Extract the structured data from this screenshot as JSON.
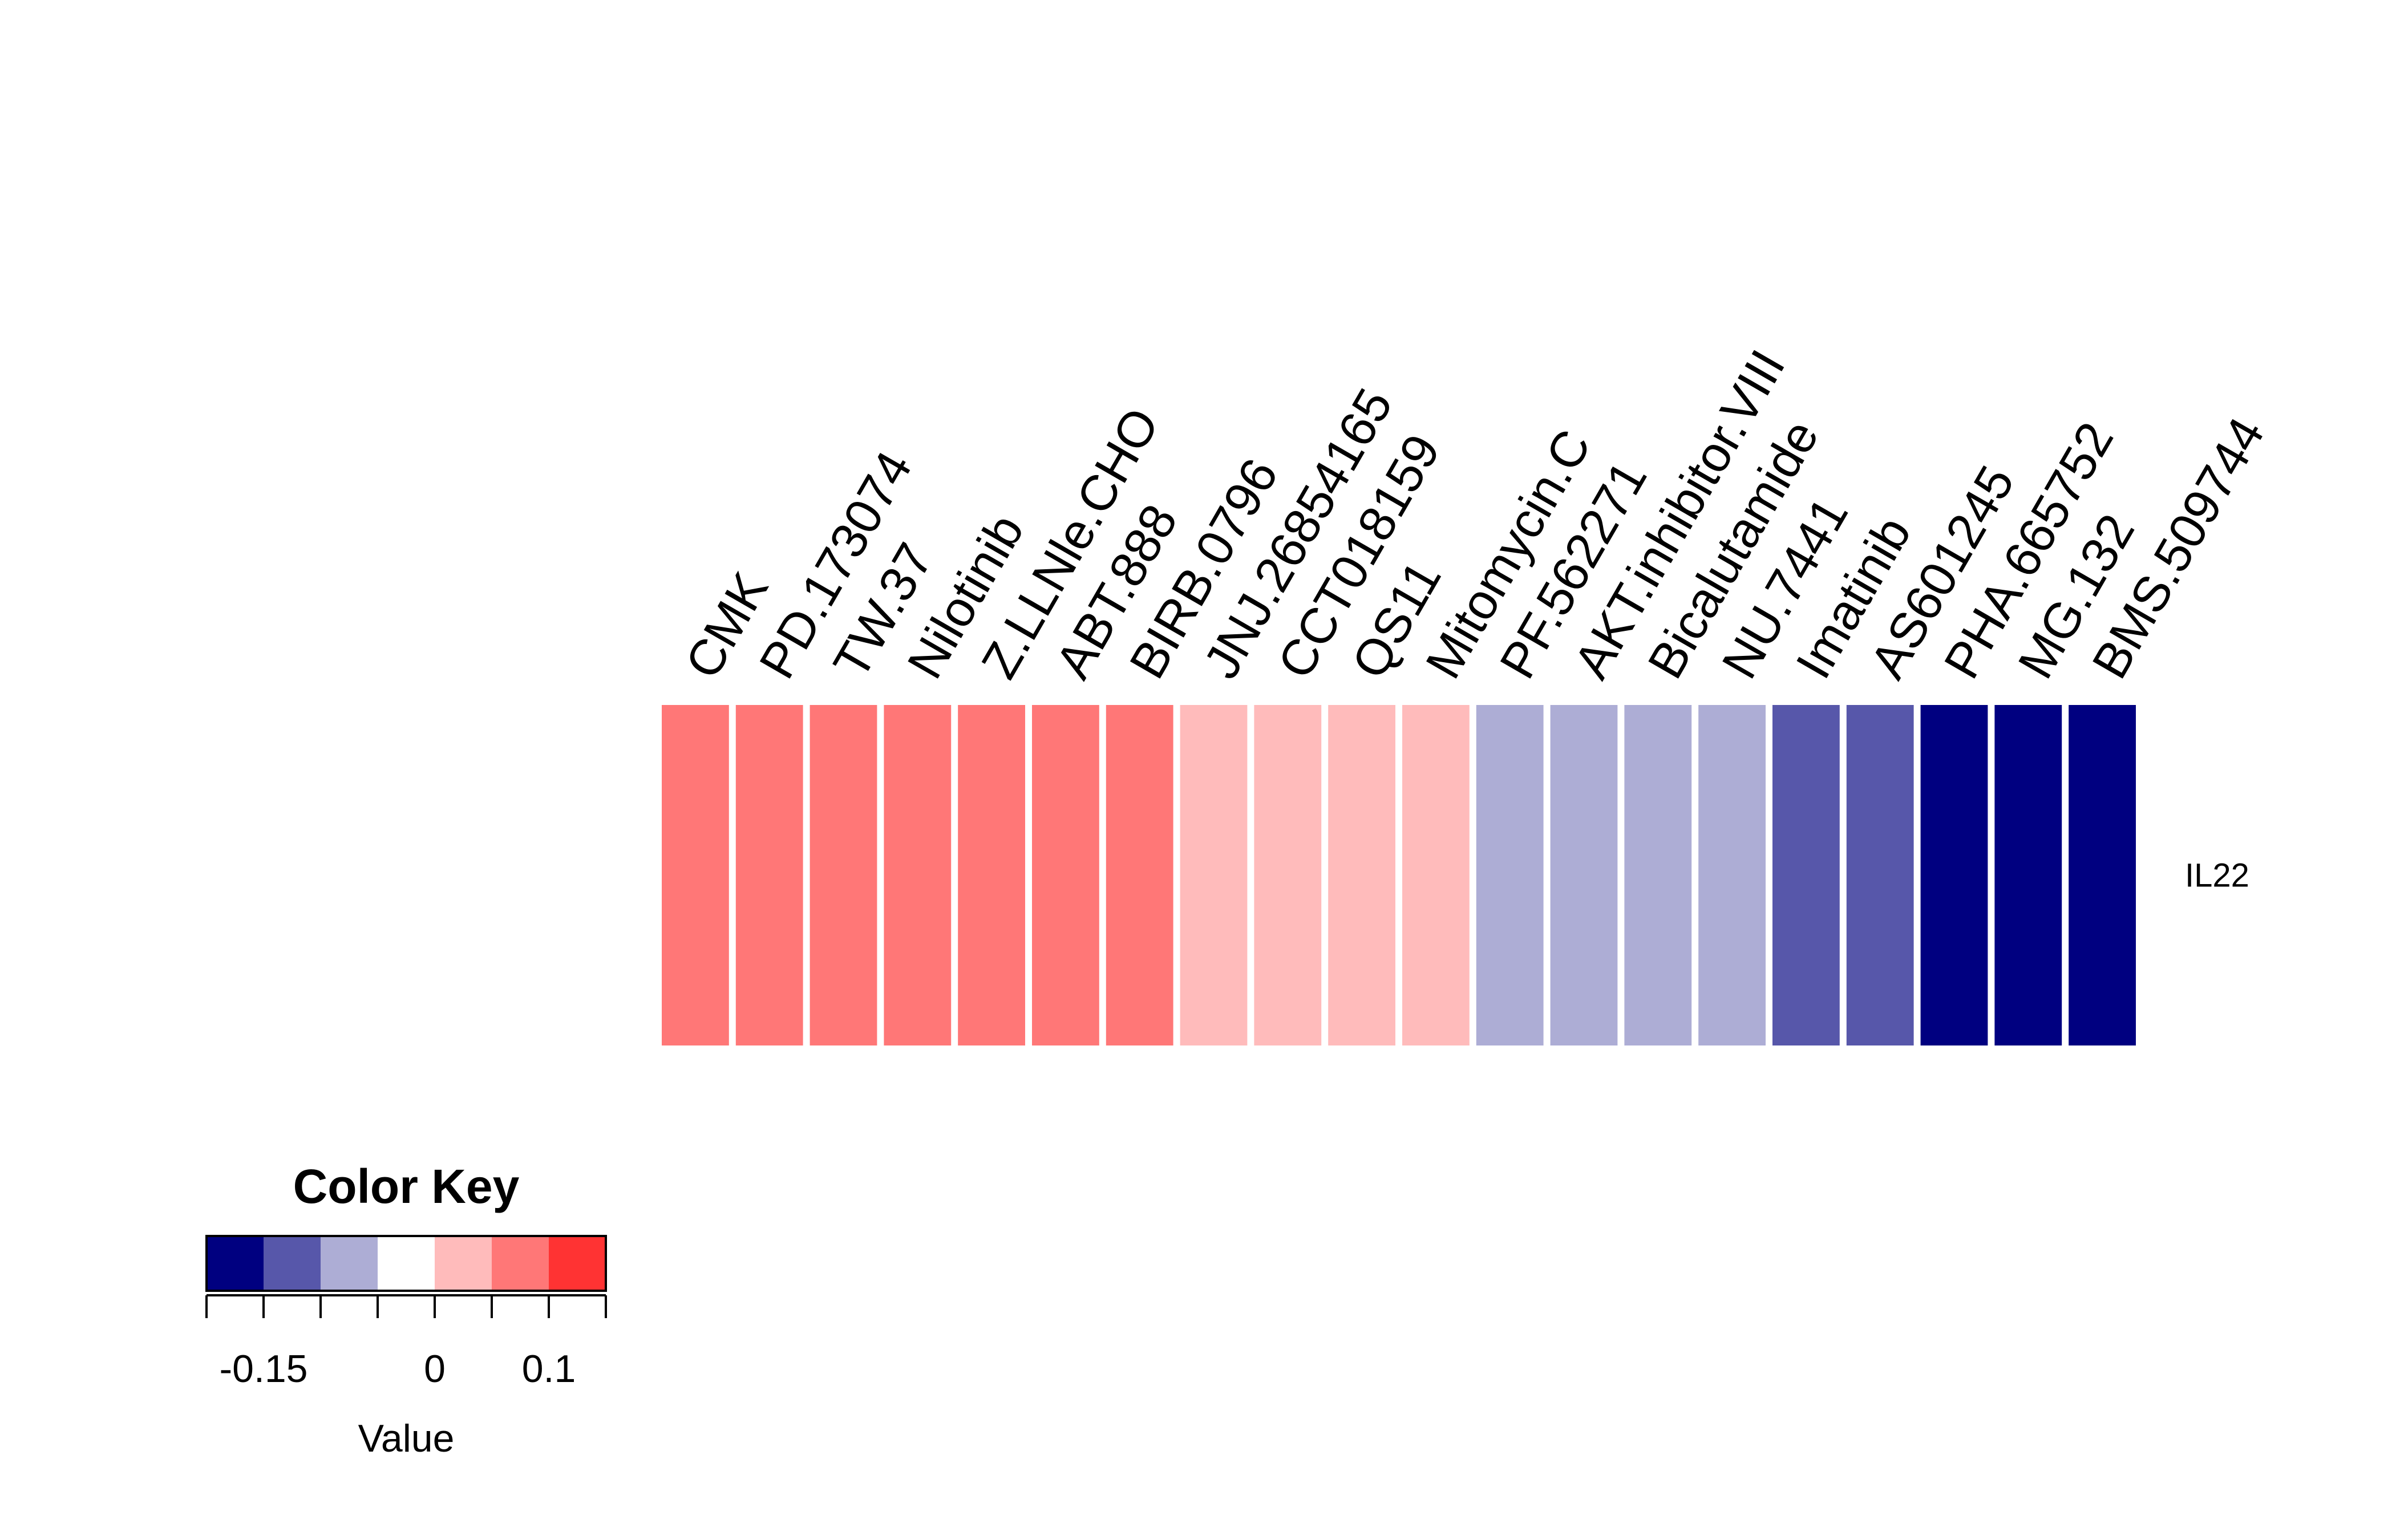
{
  "chart_data": {
    "type": "heatmap",
    "rows": [
      "IL22"
    ],
    "columns": [
      "CMK",
      "PD.173074",
      "TW.37",
      "Nilotinib",
      "Z.LLNle.CHO",
      "ABT.888",
      "BIRB.0796",
      "JNJ.26854165",
      "CCT018159",
      "QS11",
      "Mitomycin.C",
      "PF.562271",
      "AKT.inhibitor.VIII",
      "Bicalutamide",
      "NU.7441",
      "Imatinib",
      "AS601245",
      "PHA.665752",
      "MG.132",
      "BMS.509744"
    ],
    "values": [
      [
        0.075,
        0.075,
        0.075,
        0.075,
        0.075,
        0.075,
        0.075,
        0.025,
        0.025,
        0.025,
        0.025,
        -0.075,
        -0.075,
        -0.075,
        -0.075,
        -0.125,
        -0.125,
        -0.175,
        -0.175,
        -0.175
      ]
    ],
    "color_key": {
      "title": "Color Key",
      "xlabel": "Value",
      "breaks": [
        -0.2,
        -0.15,
        -0.1,
        -0.05,
        0,
        0.05,
        0.1,
        0.15
      ],
      "colors": [
        "#000080",
        "#5757AA",
        "#ADADD5",
        "#FFFFFF",
        "#FFBBBB",
        "#FF7777",
        "#FF3333"
      ],
      "tick_values": [
        -0.2,
        -0.15,
        -0.1,
        -0.05,
        0,
        0.05,
        0.1,
        0.15
      ],
      "tick_labels": [
        {
          "value": -0.15,
          "label": "-0.15"
        },
        {
          "value": 0,
          "label": "0"
        },
        {
          "value": 0.1,
          "label": "0.1"
        }
      ]
    }
  }
}
